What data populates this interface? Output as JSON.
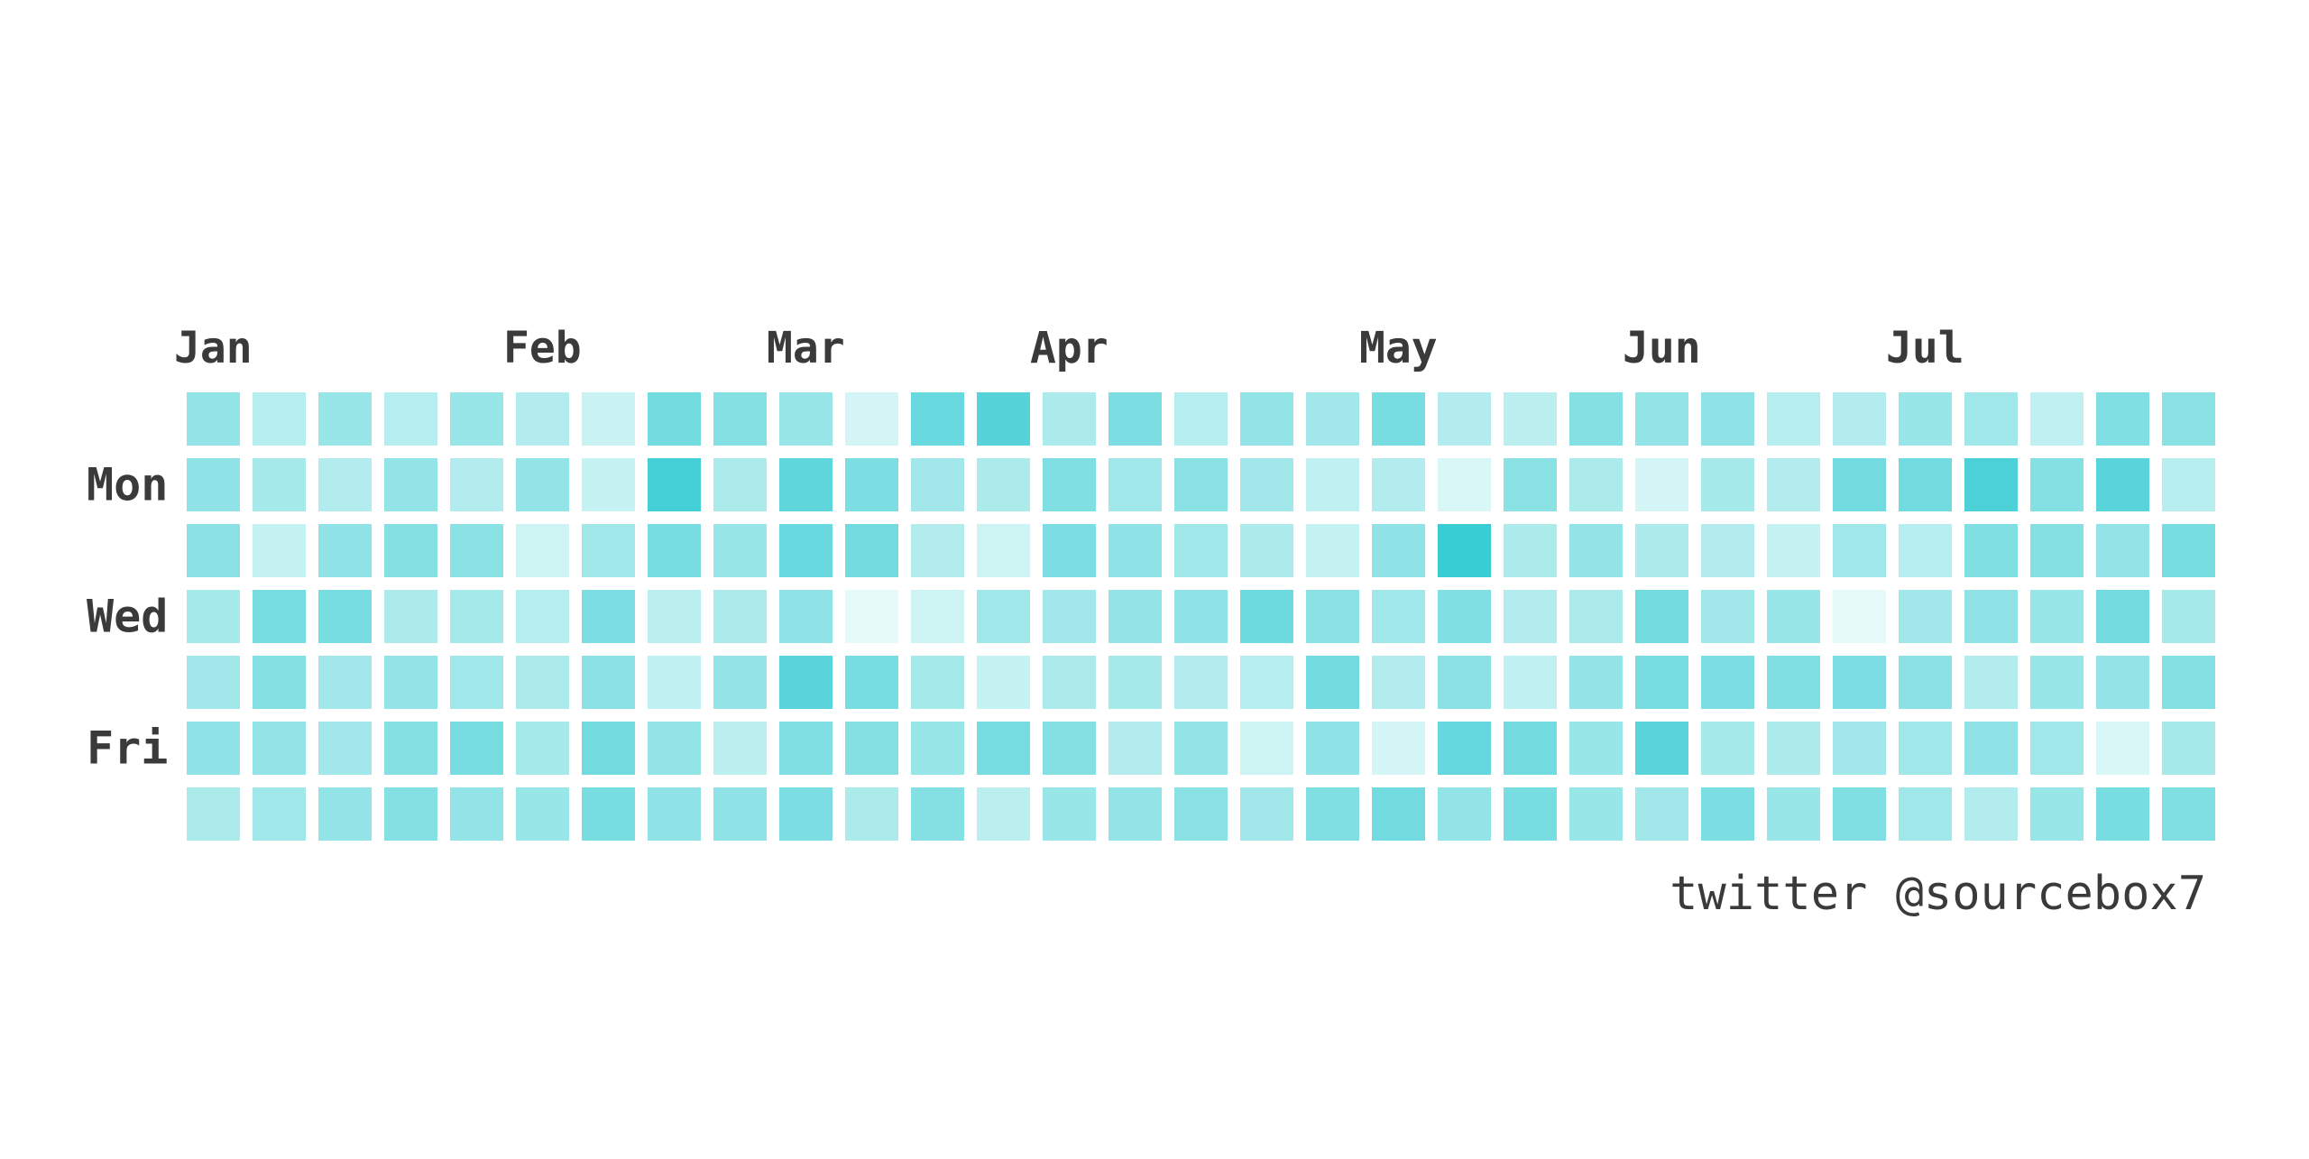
{
  "chart_data": {
    "type": "heatmap",
    "title": "",
    "xlabel": "",
    "ylabel": "",
    "month_labels": [
      {
        "label": "Jan",
        "week": 0
      },
      {
        "label": "Feb",
        "week": 5
      },
      {
        "label": "Mar",
        "week": 9
      },
      {
        "label": "Apr",
        "week": 13
      },
      {
        "label": "May",
        "week": 18
      },
      {
        "label": "Jun",
        "week": 22
      },
      {
        "label": "Jul",
        "week": 26
      }
    ],
    "day_labels": [
      {
        "label": "Mon",
        "row": 1
      },
      {
        "label": "Wed",
        "row": 3
      },
      {
        "label": "Fri",
        "row": 5
      }
    ],
    "num_weeks": 31,
    "num_days": 7,
    "scale": {
      "min": 0,
      "max": 1,
      "low_color": "#f0fdfb",
      "high_color": "#2ec9d1"
    },
    "values": [
      [
        0.48,
        0.3,
        0.45,
        0.3,
        0.45,
        0.32,
        0.2,
        0.65,
        0.55,
        0.45,
        0.15,
        0.7,
        0.8,
        0.35,
        0.6,
        0.3,
        0.48,
        0.4,
        0.62,
        0.32,
        0.28,
        0.55,
        0.48,
        0.5,
        0.3,
        0.32,
        0.45,
        0.42,
        0.25,
        0.58,
        0.52
      ],
      [
        0.5,
        0.38,
        0.32,
        0.48,
        0.32,
        0.48,
        0.22,
        0.88,
        0.35,
        0.75,
        0.6,
        0.4,
        0.35,
        0.58,
        0.42,
        0.52,
        0.4,
        0.25,
        0.32,
        0.12,
        0.52,
        0.35,
        0.15,
        0.38,
        0.32,
        0.65,
        0.65,
        0.85,
        0.55,
        0.78,
        0.3
      ],
      [
        0.52,
        0.22,
        0.5,
        0.55,
        0.52,
        0.18,
        0.42,
        0.62,
        0.45,
        0.7,
        0.65,
        0.32,
        0.18,
        0.6,
        0.5,
        0.42,
        0.35,
        0.22,
        0.5,
        0.95,
        0.35,
        0.48,
        0.35,
        0.32,
        0.22,
        0.42,
        0.3,
        0.58,
        0.55,
        0.48,
        0.62
      ],
      [
        0.38,
        0.62,
        0.62,
        0.35,
        0.38,
        0.3,
        0.6,
        0.28,
        0.35,
        0.5,
        0.05,
        0.18,
        0.42,
        0.4,
        0.48,
        0.5,
        0.68,
        0.52,
        0.42,
        0.58,
        0.32,
        0.35,
        0.65,
        0.4,
        0.45,
        0.05,
        0.4,
        0.5,
        0.45,
        0.65,
        0.38
      ],
      [
        0.4,
        0.55,
        0.4,
        0.48,
        0.42,
        0.35,
        0.52,
        0.25,
        0.48,
        0.78,
        0.62,
        0.38,
        0.22,
        0.35,
        0.38,
        0.32,
        0.3,
        0.65,
        0.32,
        0.52,
        0.25,
        0.48,
        0.62,
        0.6,
        0.58,
        0.6,
        0.52,
        0.32,
        0.45,
        0.48,
        0.55
      ],
      [
        0.5,
        0.48,
        0.4,
        0.55,
        0.62,
        0.38,
        0.65,
        0.48,
        0.28,
        0.58,
        0.55,
        0.45,
        0.62,
        0.55,
        0.32,
        0.48,
        0.18,
        0.5,
        0.15,
        0.72,
        0.65,
        0.45,
        0.78,
        0.38,
        0.35,
        0.4,
        0.42,
        0.5,
        0.42,
        0.12,
        0.38
      ],
      [
        0.35,
        0.42,
        0.48,
        0.55,
        0.48,
        0.45,
        0.62,
        0.5,
        0.5,
        0.6,
        0.35,
        0.55,
        0.28,
        0.45,
        0.48,
        0.52,
        0.4,
        0.58,
        0.65,
        0.48,
        0.62,
        0.45,
        0.4,
        0.6,
        0.45,
        0.58,
        0.42,
        0.32,
        0.45,
        0.62,
        0.58
      ]
    ],
    "annotation": "twitter @sourcebox7"
  }
}
